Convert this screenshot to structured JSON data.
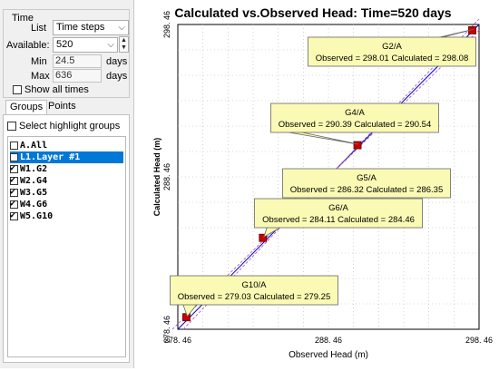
{
  "time_panel": {
    "title": "Time",
    "list_label": "List",
    "list_value": "Time steps",
    "available_label": "Available:",
    "available_value": "520",
    "min_label": "Min",
    "min_value": "24.5",
    "min_unit": "days",
    "max_label": "Max",
    "max_value": "636",
    "max_unit": "days",
    "show_all_label": "Show all times",
    "show_all_checked": false
  },
  "tabs": [
    {
      "label": "Groups",
      "active": true
    },
    {
      "label": "Points",
      "active": false
    }
  ],
  "groups": {
    "highlight_label": "Select highlight groups",
    "items": [
      {
        "label": "A.All",
        "checked": false,
        "selected": false
      },
      {
        "label": "L1.Layer #1",
        "checked": false,
        "selected": true
      },
      {
        "label": "W1.G2",
        "checked": true,
        "selected": false
      },
      {
        "label": "W2.G4",
        "checked": true,
        "selected": false
      },
      {
        "label": "W3.G5",
        "checked": true,
        "selected": false
      },
      {
        "label": "W4.G6",
        "checked": true,
        "selected": false
      },
      {
        "label": "W5.G10",
        "checked": true,
        "selected": false
      }
    ]
  },
  "chart_data": {
    "type": "scatter",
    "title": "Calculated vs.Observed Head: Time=520 days",
    "xlabel": "Observed Head (m)",
    "ylabel": "Calculated Head (m)",
    "xlim": [
      278.46,
      298.46
    ],
    "ylim": [
      278.46,
      298.46
    ],
    "xticks": [
      "278. 46",
      "288. 46",
      "298. 46"
    ],
    "yticks": [
      "278. 46",
      "288. 46",
      "298. 46"
    ],
    "colors": {
      "marker": "#cc0000",
      "identity_line": "#0000cc",
      "band_line": "#b060c0",
      "callout_fill": "#fafab4"
    },
    "points": [
      {
        "name": "G2/A",
        "observed": 298.01,
        "calculated": 298.08,
        "label": "Observed = 298.01 Calculated = 298.08"
      },
      {
        "name": "G4/A",
        "observed": 290.39,
        "calculated": 290.54,
        "label": "Observed = 290.39 Calculated = 290.54"
      },
      {
        "name": "G5/A",
        "observed": 286.32,
        "calculated": 286.35,
        "label": "Observed = 286.32 Calculated = 286.35"
      },
      {
        "name": "G6/A",
        "observed": 284.11,
        "calculated": 284.46,
        "label": "Observed = 284.11 Calculated = 284.46"
      },
      {
        "name": "G10/A",
        "observed": 279.03,
        "calculated": 279.25,
        "label": "Observed = 279.03 Calculated = 279.25"
      }
    ]
  }
}
